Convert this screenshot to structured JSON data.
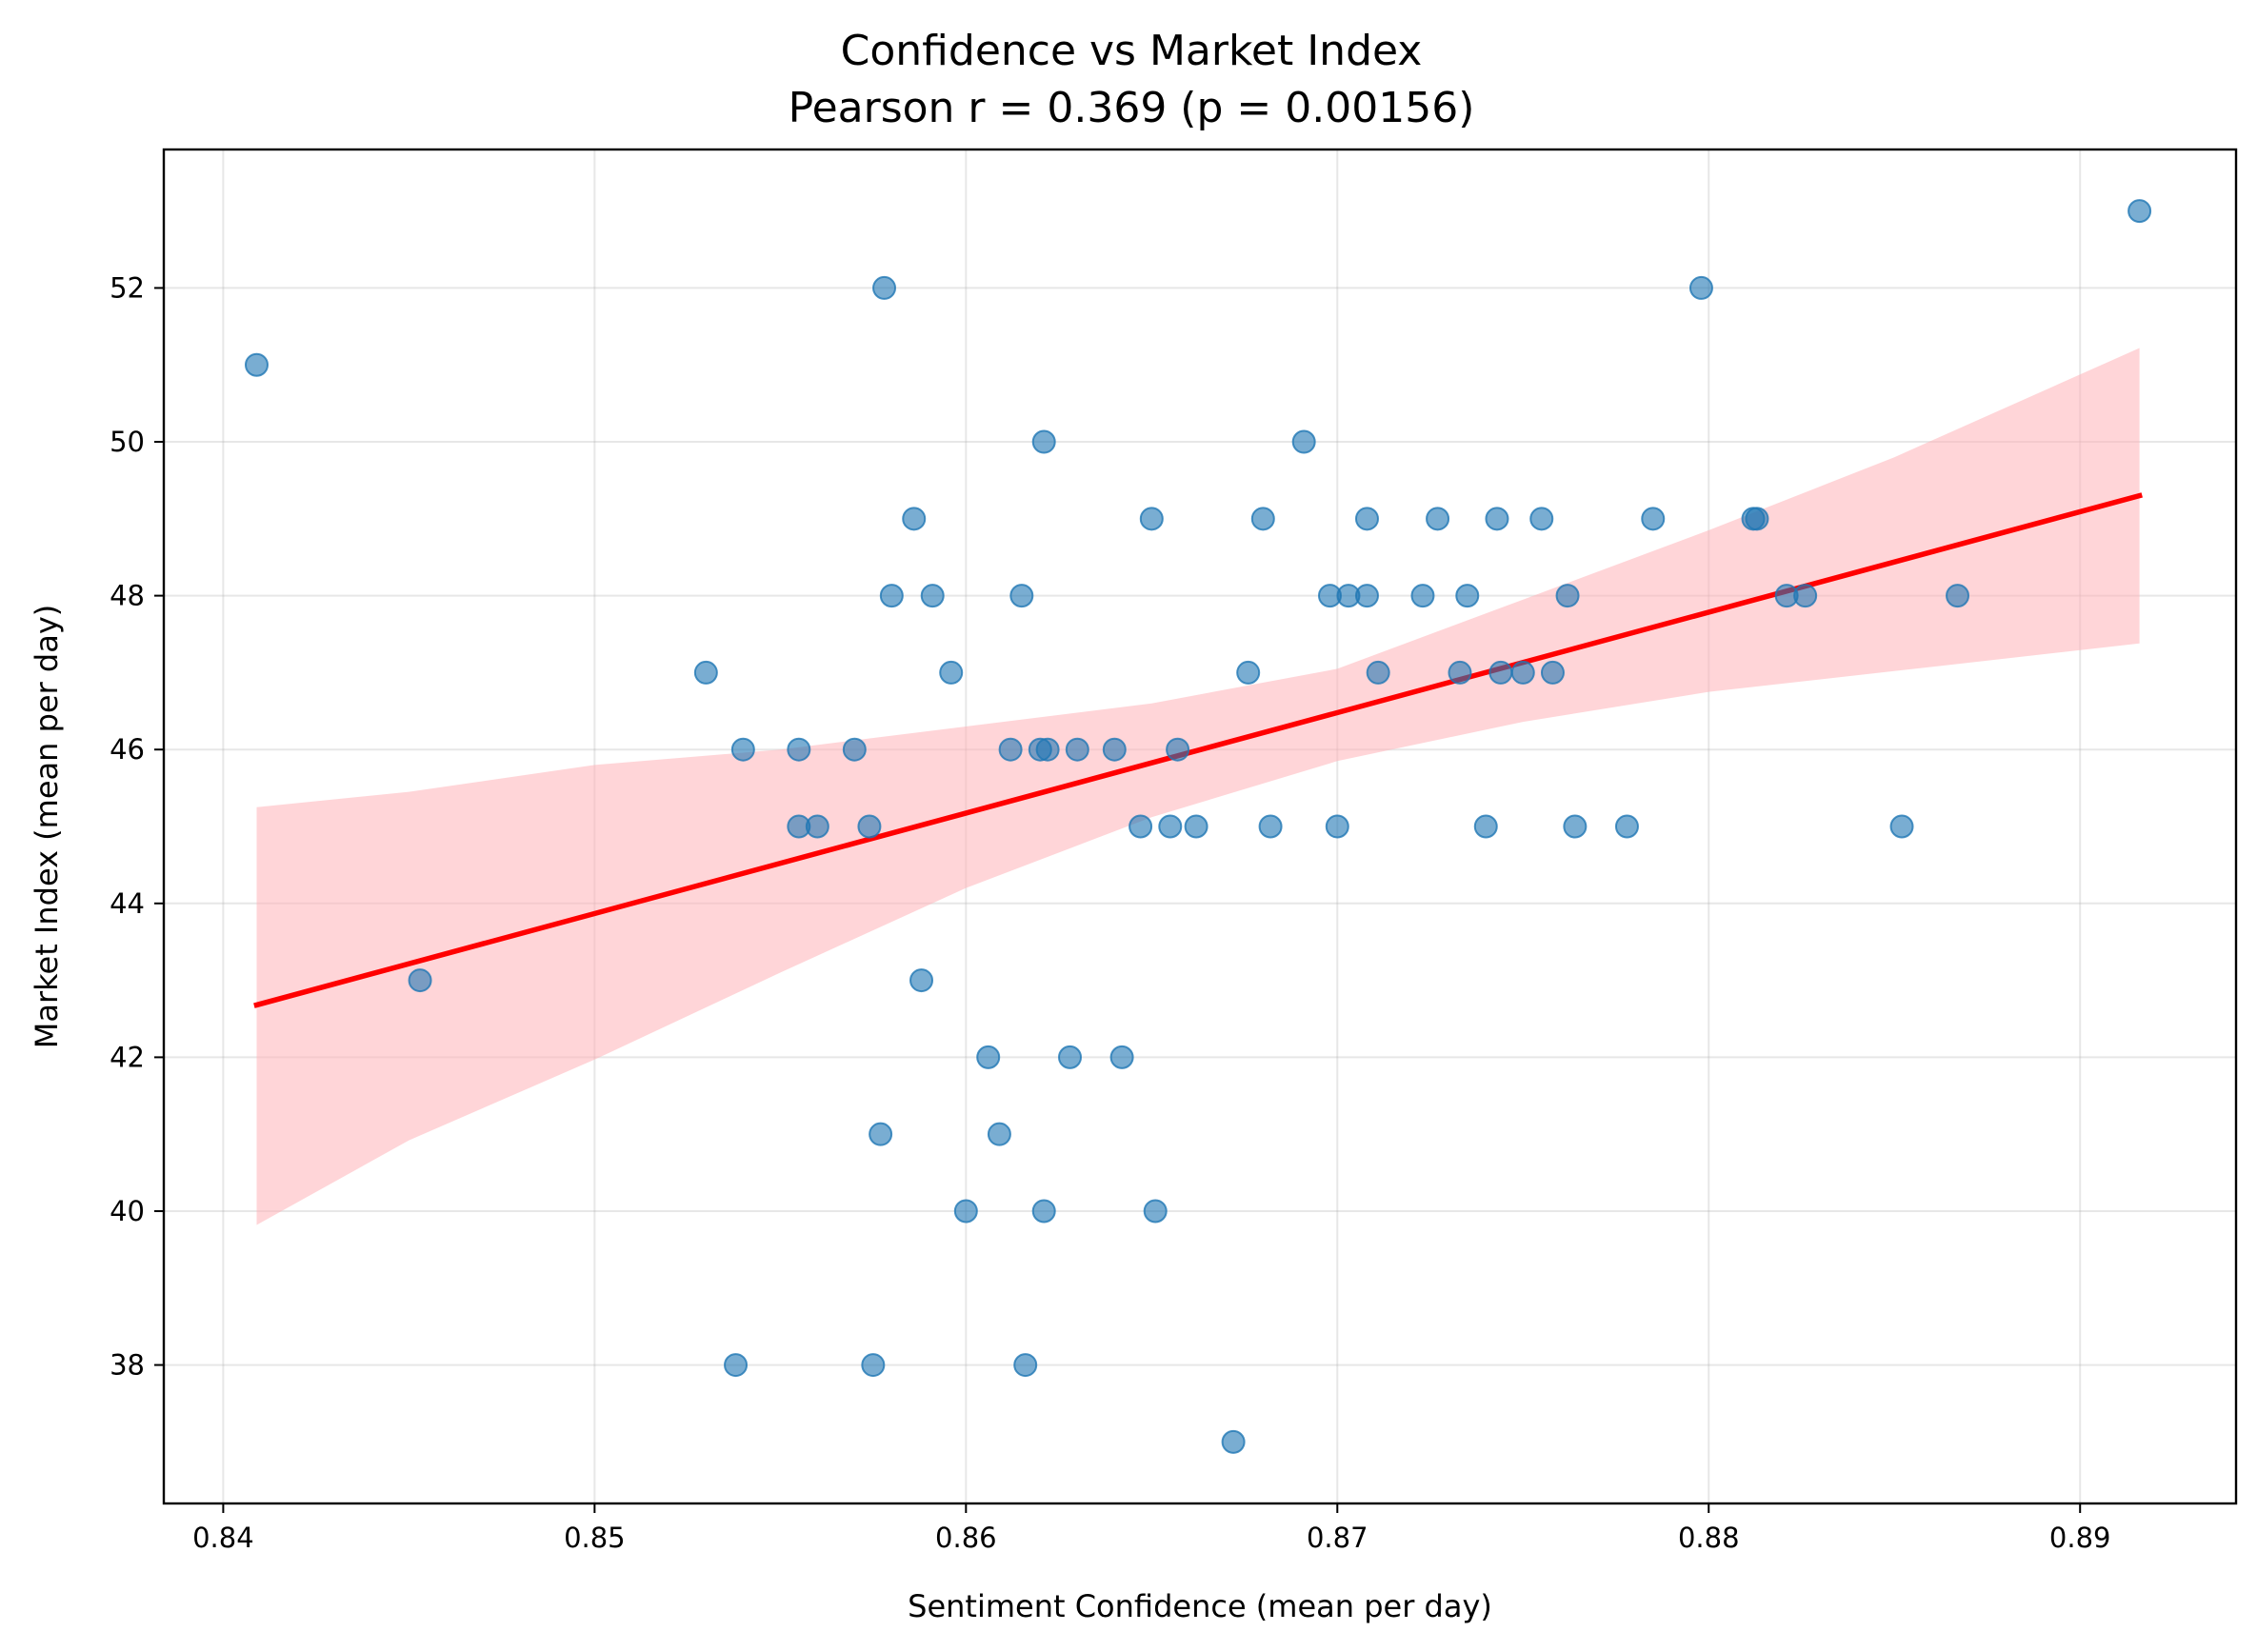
{
  "chart_data": {
    "type": "scatter",
    "title": "Confidence vs Market Index",
    "subtitle": "Pearson r = 0.369 (p = 0.00156)",
    "xlabel": "Sentiment Confidence (mean per day)",
    "ylabel": "Market Index (mean per day)",
    "xlim": [
      0.8384,
      0.8942
    ],
    "ylim": [
      36.2,
      53.8
    ],
    "xticks": [
      "0.84",
      "0.85",
      "0.86",
      "0.87",
      "0.88",
      "0.89"
    ],
    "yticks": [
      "38",
      "40",
      "42",
      "44",
      "46",
      "48",
      "50",
      "52"
    ],
    "grid": true,
    "colors": {
      "points": "#1f77b4",
      "regression_line": "#ff0000",
      "confidence_band": "#ffb3b8"
    },
    "series": [
      {
        "type": "scatter",
        "points": [
          [
            0.8409,
            51
          ],
          [
            0.8453,
            43
          ],
          [
            0.853,
            47
          ],
          [
            0.8538,
            38
          ],
          [
            0.854,
            46
          ],
          [
            0.8555,
            46
          ],
          [
            0.8555,
            45
          ],
          [
            0.856,
            45
          ],
          [
            0.857,
            46
          ],
          [
            0.8574,
            45
          ],
          [
            0.8575,
            38
          ],
          [
            0.8577,
            41
          ],
          [
            0.8578,
            52
          ],
          [
            0.858,
            48
          ],
          [
            0.8586,
            49
          ],
          [
            0.8588,
            43
          ],
          [
            0.8591,
            48
          ],
          [
            0.8596,
            47
          ],
          [
            0.86,
            40
          ],
          [
            0.8606,
            42
          ],
          [
            0.8609,
            41
          ],
          [
            0.8612,
            46
          ],
          [
            0.8615,
            48
          ],
          [
            0.8616,
            38
          ],
          [
            0.862,
            46
          ],
          [
            0.8621,
            50
          ],
          [
            0.8621,
            40
          ],
          [
            0.8622,
            46
          ],
          [
            0.8628,
            42
          ],
          [
            0.863,
            46
          ],
          [
            0.864,
            46
          ],
          [
            0.8642,
            42
          ],
          [
            0.8647,
            45
          ],
          [
            0.865,
            49
          ],
          [
            0.8651,
            40
          ],
          [
            0.8655,
            45
          ],
          [
            0.8657,
            46
          ],
          [
            0.8662,
            45
          ],
          [
            0.8672,
            37
          ],
          [
            0.8676,
            47
          ],
          [
            0.868,
            49
          ],
          [
            0.8682,
            45
          ],
          [
            0.8691,
            50
          ],
          [
            0.8698,
            48
          ],
          [
            0.87,
            45
          ],
          [
            0.8703,
            48
          ],
          [
            0.8708,
            49
          ],
          [
            0.8708,
            48
          ],
          [
            0.8711,
            47
          ],
          [
            0.8723,
            48
          ],
          [
            0.8727,
            49
          ],
          [
            0.8733,
            47
          ],
          [
            0.8735,
            48
          ],
          [
            0.874,
            45
          ],
          [
            0.8743,
            49
          ],
          [
            0.8744,
            47
          ],
          [
            0.875,
            47
          ],
          [
            0.8755,
            49
          ],
          [
            0.8758,
            47
          ],
          [
            0.8762,
            48
          ],
          [
            0.8764,
            45
          ],
          [
            0.8778,
            45
          ],
          [
            0.8785,
            49
          ],
          [
            0.8798,
            52
          ],
          [
            0.8812,
            49
          ],
          [
            0.8813,
            49
          ],
          [
            0.8821,
            48
          ],
          [
            0.8826,
            48
          ],
          [
            0.8852,
            45
          ],
          [
            0.8867,
            48
          ],
          [
            0.8916,
            53
          ]
        ]
      },
      {
        "type": "line",
        "x": [
          0.8409,
          0.8916
        ],
        "y": [
          42.68,
          49.3
        ]
      },
      {
        "type": "area",
        "x": [
          0.8409,
          0.845,
          0.85,
          0.855,
          0.86,
          0.865,
          0.87,
          0.875,
          0.88,
          0.885,
          0.8916
        ],
        "lower": [
          39.82,
          40.92,
          41.97,
          43.1,
          44.2,
          45.12,
          45.85,
          46.36,
          46.75,
          47.02,
          47.38
        ],
        "upper": [
          45.25,
          45.45,
          45.8,
          46.0,
          46.3,
          46.6,
          47.05,
          47.95,
          48.85,
          49.8,
          51.22
        ]
      }
    ]
  }
}
